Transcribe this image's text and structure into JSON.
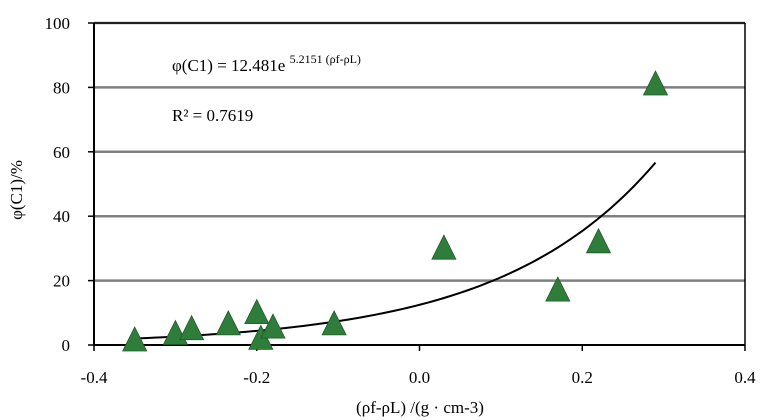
{
  "chart_data": {
    "type": "scatter",
    "title": "",
    "xlim": [
      -0.4,
      0.4
    ],
    "ylim": [
      0,
      100
    ],
    "x_ticks": [
      -0.4,
      -0.2,
      0.0,
      0.2,
      0.4
    ],
    "x_tick_labels": [
      "-0.4",
      "-0.2",
      "0.0",
      "0.2",
      "0.4"
    ],
    "y_ticks": [
      0,
      20,
      40,
      60,
      80,
      100
    ],
    "y_tick_labels": [
      "0",
      "20",
      "40",
      "60",
      "80",
      "100"
    ],
    "xlabel": "(ρf-ρL) /(g · cm-3)",
    "ylabel": "φ(C1)/%",
    "grid": "horizontal",
    "marker": "triangle",
    "marker_color": "#2f7d3a",
    "series": [
      {
        "values": [
          {
            "x": -0.35,
            "y": 1.5
          },
          {
            "x": -0.3,
            "y": 3.5
          },
          {
            "x": -0.28,
            "y": 5.0
          },
          {
            "x": -0.235,
            "y": 6.5
          },
          {
            "x": -0.2,
            "y": 10.0
          },
          {
            "x": -0.195,
            "y": 2.0
          },
          {
            "x": -0.18,
            "y": 5.5
          },
          {
            "x": -0.105,
            "y": 6.5
          },
          {
            "x": 0.03,
            "y": 30.0
          },
          {
            "x": 0.17,
            "y": 17.0
          },
          {
            "x": 0.22,
            "y": 32.0
          },
          {
            "x": 0.29,
            "y": 81.0
          }
        ]
      }
    ],
    "trendline": {
      "type": "exponential",
      "a": 12.481,
      "b": 5.2151,
      "x_range": [
        -0.35,
        0.29
      ],
      "color": "#000000"
    },
    "annotations": {
      "equation_lhs": "φ(C1) = 12.481e",
      "equation_exp": "5.2151 (ρf-ρL)",
      "r2": "R² = 0.7619"
    }
  }
}
